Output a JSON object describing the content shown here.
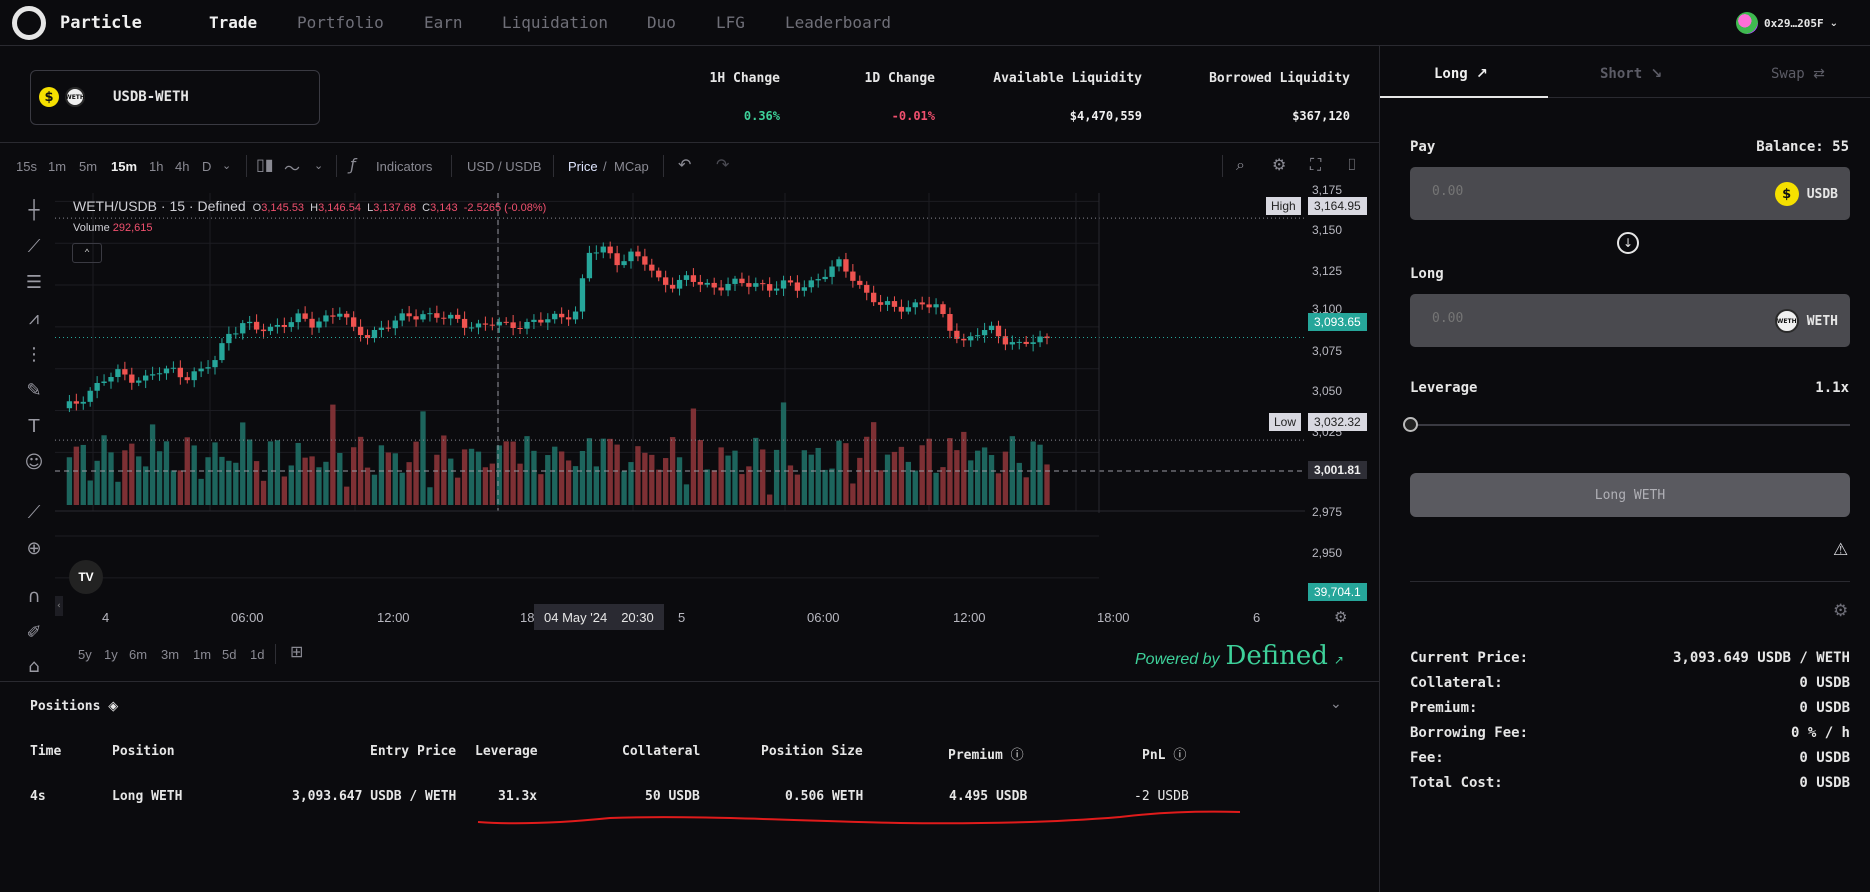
{
  "nav": {
    "brand": "Particle",
    "items": [
      "Trade",
      "Portfolio",
      "Earn",
      "Liquidation",
      "Duo",
      "LFG",
      "Leaderboard"
    ],
    "wallet": "0x29…205F"
  },
  "pair": {
    "label": "USDB-WETH"
  },
  "stats": [
    {
      "label": "1H Change",
      "value": "0.36%"
    },
    {
      "label": "1D Change",
      "value": "-0.01%"
    },
    {
      "label": "Available Liquidity",
      "value": "$4,470,559"
    },
    {
      "label": "Borrowed Liquidity",
      "value": "$367,120"
    }
  ],
  "colors": {
    "up": "#3ed19a",
    "down": "#f0506e",
    "upCandle": "#26a69a",
    "downCandle": "#ef5350"
  },
  "toolbar": {
    "timeframes": [
      "15s",
      "1m",
      "5m",
      "15m",
      "1h",
      "4h",
      "D"
    ],
    "active_timeframe": "15m",
    "indicators": "Indicators",
    "currency": "USD / USDB",
    "price_label": "Price",
    "mcap_label": "MCap"
  },
  "chart": {
    "legend_title": "WETH/USDB · 15 · Defined",
    "ohlc": {
      "o": "3,145.53",
      "h": "3,146.54",
      "l": "3,137.68",
      "c": "3,143",
      "chg": "-2.5265 (-0.08%)"
    },
    "volume_label": "Volume",
    "volume_value": "292,615",
    "high_label": "High",
    "high_value": "3,164.95",
    "low_label": "Low",
    "low_value": "3,032.32",
    "last_price": "3,093.65",
    "crosshair_price": "3,001.81",
    "last_volume": "39,704.1",
    "crosshair_date": "04 May '24",
    "crosshair_time": "20:30",
    "time_ticks": [
      "4",
      "06:00",
      "12:00",
      "18",
      "5",
      "06:00",
      "12:00",
      "18:00",
      "6"
    ]
  },
  "chart_data": {
    "type": "candlestick",
    "title": "WETH/USDB · 15 · Defined",
    "price_ticks": [
      "3,175",
      "3,150",
      "3,125",
      "3,100",
      "3,075",
      "3,050",
      "3,025",
      "2,975",
      "2,950"
    ],
    "ylim": [
      2935,
      3180
    ],
    "x_start": "2024-05-04 00:00",
    "interval_minutes": 15,
    "close_points": [
      [
        0,
        3050
      ],
      [
        2,
        3055
      ],
      [
        4,
        3062
      ],
      [
        6,
        3068
      ],
      [
        8,
        3072
      ],
      [
        10,
        3070
      ],
      [
        12,
        3069
      ],
      [
        14,
        3073
      ],
      [
        16,
        3074
      ],
      [
        18,
        3071
      ],
      [
        20,
        3073
      ],
      [
        22,
        3080
      ],
      [
        24,
        3097
      ],
      [
        26,
        3102
      ],
      [
        28,
        3098
      ],
      [
        30,
        3099
      ],
      [
        32,
        3103
      ],
      [
        34,
        3105
      ],
      [
        36,
        3101
      ],
      [
        38,
        3106
      ],
      [
        40,
        3110
      ],
      [
        42,
        3097
      ],
      [
        44,
        3095
      ],
      [
        46,
        3100
      ],
      [
        48,
        3103
      ],
      [
        50,
        3106
      ],
      [
        52,
        3108
      ],
      [
        54,
        3107
      ],
      [
        56,
        3104
      ],
      [
        58,
        3102
      ],
      [
        60,
        3101
      ],
      [
        62,
        3102
      ],
      [
        64,
        3100
      ],
      [
        66,
        3102
      ],
      [
        68,
        3103
      ],
      [
        70,
        3104
      ],
      [
        72,
        3106
      ],
      [
        74,
        3110
      ],
      [
        76,
        3144
      ],
      [
        78,
        3146
      ],
      [
        80,
        3140
      ],
      [
        82,
        3143
      ],
      [
        84,
        3138
      ],
      [
        86,
        3128
      ],
      [
        88,
        3126
      ],
      [
        90,
        3128
      ],
      [
        92,
        3126
      ],
      [
        94,
        3124
      ],
      [
        96,
        3126
      ],
      [
        98,
        3125
      ],
      [
        100,
        3126
      ],
      [
        102,
        3124
      ],
      [
        104,
        3125
      ],
      [
        106,
        3123
      ],
      [
        108,
        3127
      ],
      [
        110,
        3132
      ],
      [
        112,
        3137
      ],
      [
        114,
        3130
      ],
      [
        116,
        3120
      ],
      [
        118,
        3113
      ],
      [
        120,
        3111
      ],
      [
        122,
        3113
      ],
      [
        124,
        3114
      ],
      [
        126,
        3111
      ],
      [
        128,
        3100
      ],
      [
        130,
        3091
      ],
      [
        132,
        3096
      ],
      [
        134,
        3098
      ],
      [
        136,
        3093
      ],
      [
        138,
        3089
      ],
      [
        140,
        3091
      ],
      [
        142,
        3093
      ]
    ],
    "range_buttons": [
      "5y",
      "1y",
      "6m",
      "3m",
      "1m",
      "5d",
      "1d"
    ],
    "grid": true
  },
  "powered": {
    "prefix": "Powered by",
    "brand": "Defined"
  },
  "positions": {
    "title": "Positions",
    "columns": [
      "Time",
      "Position",
      "Entry Price",
      "Leverage",
      "Collateral",
      "Position Size",
      "Premium",
      "PnL"
    ],
    "rows": [
      {
        "time": "4s",
        "position": "Long WETH",
        "entry": "3,093.647 USDB / WETH",
        "leverage": "31.3x",
        "collateral": "50 USDB",
        "size": "0.506 WETH",
        "premium": "4.495 USDB",
        "pnl": "-2 USDB"
      }
    ]
  },
  "trade": {
    "tabs": [
      "Long",
      "Short",
      "Swap"
    ],
    "pay_label": "Pay",
    "balance": "Balance: 55",
    "pay_placeholder": "0.00",
    "pay_token": "USDB",
    "long_label": "Long",
    "long_placeholder": "0.00",
    "long_token": "WETH",
    "leverage_label": "Leverage",
    "leverage_value": "1.1x",
    "submit": "Long WETH",
    "summary": [
      {
        "k": "Current Price:",
        "v": "3,093.649 USDB / WETH"
      },
      {
        "k": "Collateral:",
        "v": "0 USDB"
      },
      {
        "k": "Premium:",
        "v": "0 USDB"
      },
      {
        "k": "Borrowing Fee:",
        "v": "0 % / h"
      },
      {
        "k": "Fee:",
        "v": "0 USDB"
      },
      {
        "k": "Total Cost:",
        "v": "0 USDB"
      }
    ]
  }
}
